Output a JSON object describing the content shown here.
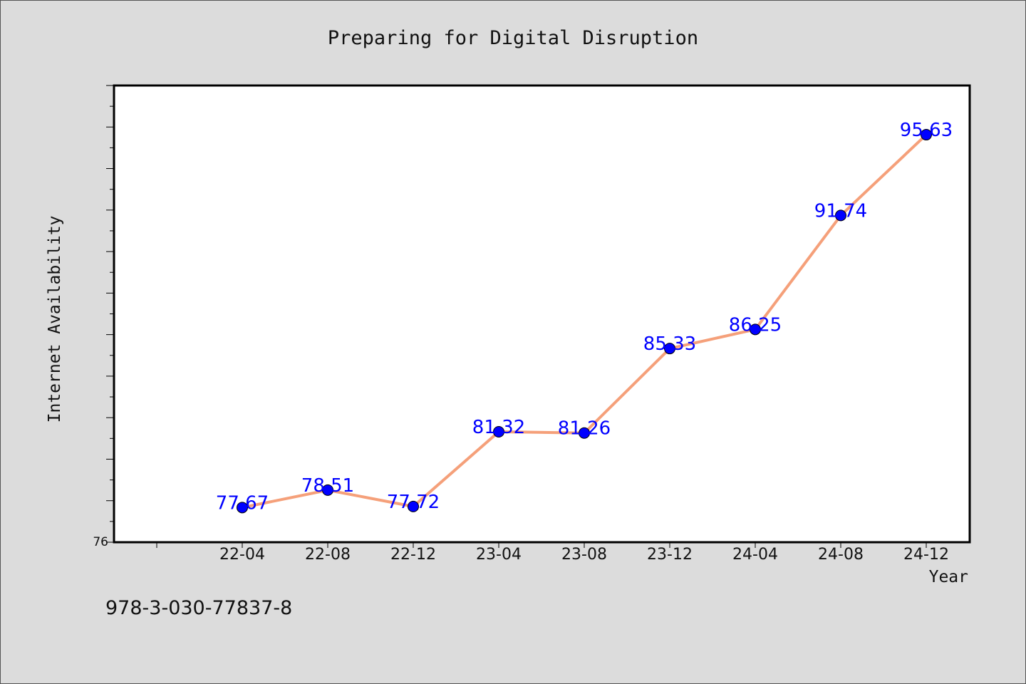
{
  "chart_data": {
    "type": "line",
    "title": "Preparing for Digital Disruption",
    "xlabel": "Year",
    "ylabel": "Internet Availability",
    "categories": [
      "22-04",
      "22-08",
      "22-12",
      "23-04",
      "23-08",
      "23-12",
      "24-04",
      "24-08",
      "24-12"
    ],
    "series": [
      {
        "values": [
          77.67,
          78.51,
          77.72,
          81.32,
          81.26,
          85.33,
          86.25,
          91.74,
          95.63
        ]
      }
    ],
    "ylim": [
      76,
      98
    ],
    "yticks_labeled": [
      "76"
    ],
    "grid": false,
    "line_color": "#f5a07a",
    "marker_color": "#0000ff",
    "label_color": "#0000ff"
  },
  "footer_text": "978-3-030-77837-8"
}
